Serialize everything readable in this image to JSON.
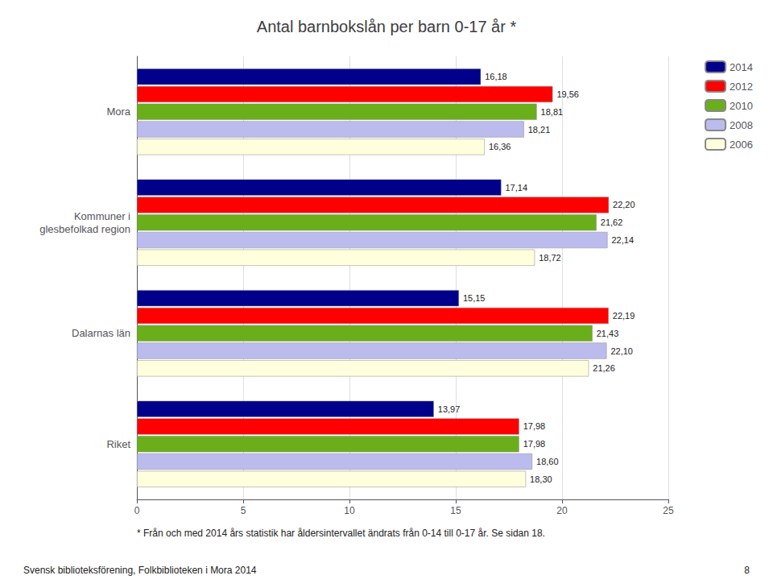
{
  "chart_data": {
    "type": "bar",
    "orientation": "horizontal",
    "title": "Antal barnbokslån per barn 0-17 år *",
    "categories": [
      "Riket",
      "Dalarnas län",
      "Kommuner i\nglesbefolkad region",
      "Mora"
    ],
    "series": [
      {
        "name": "2014",
        "color": "#00008B",
        "values": [
          13.97,
          15.15,
          17.14,
          16.18
        ],
        "value_labels": [
          "13,97",
          "15,15",
          "17,14",
          "16,18"
        ]
      },
      {
        "name": "2012",
        "color": "#FF0000",
        "values": [
          17.98,
          22.19,
          22.2,
          19.56
        ],
        "value_labels": [
          "17,98",
          "22,19",
          "22,20",
          "19,56"
        ]
      },
      {
        "name": "2010",
        "color": "#6AAF1A",
        "values": [
          17.98,
          21.43,
          21.62,
          18.81
        ],
        "value_labels": [
          "17,98",
          "21,43",
          "21,62",
          "18,81"
        ]
      },
      {
        "name": "2008",
        "color": "#BBBBEE",
        "values": [
          18.6,
          22.1,
          22.14,
          18.21
        ],
        "value_labels": [
          "18,60",
          "22,10",
          "22,14",
          "18,21"
        ]
      },
      {
        "name": "2006",
        "color": "#FFFFDD",
        "values": [
          18.3,
          21.26,
          18.72,
          16.36
        ],
        "value_labels": [
          "18,30",
          "21,26",
          "18,72",
          "16,36"
        ]
      }
    ],
    "xlim": [
      0,
      25
    ],
    "xticks": [
      0,
      5,
      10,
      15,
      20,
      25
    ],
    "grid": true,
    "legend": "right",
    "data_labels": true,
    "annotations": [
      "* Från och med 2014 års statistik har åldersintervallet ändrats från 0-14 till 0-17 år. Se sidan 18.",
      "Svensk biblioteksförening, Folkbiblioteken i Mora 2014",
      "8"
    ]
  }
}
